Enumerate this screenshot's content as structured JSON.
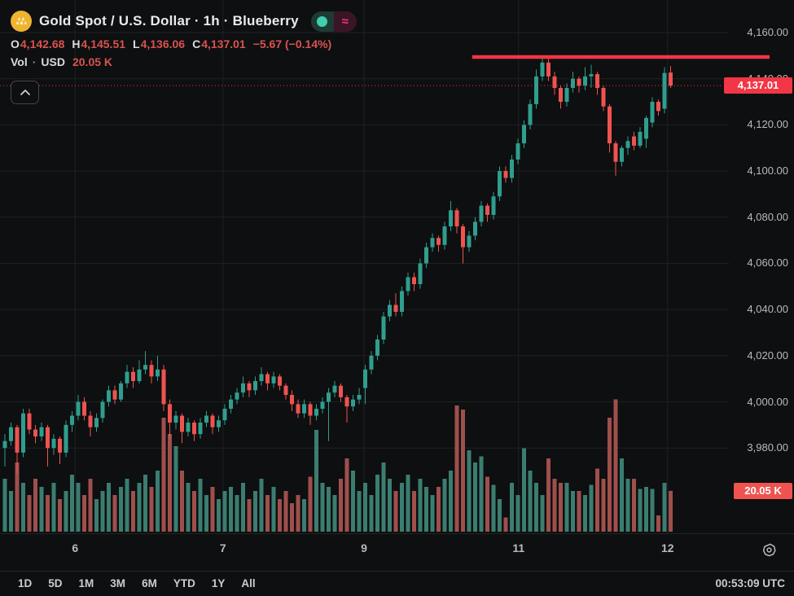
{
  "header": {
    "title": "Gold Spot / U.S. Dollar · 1h · Blueberry",
    "status": {
      "delayed_glyph": "≈"
    },
    "ohlc": {
      "o_label": "O",
      "o": "4,142.68",
      "h_label": "H",
      "h": "4,145.51",
      "l_label": "L",
      "l": "4,136.06",
      "c_label": "C",
      "c": "4,137.01",
      "change": "−5.67 (−0.14%)"
    },
    "volume_row": {
      "label": "Vol",
      "separator": "·",
      "currency": "USD",
      "value": "20.05 K"
    }
  },
  "axes": {
    "price_ticks": [
      {
        "label": "4,160.00",
        "value": 4160
      },
      {
        "label": "4,140.00",
        "value": 4140
      },
      {
        "label": "4,120.00",
        "value": 4120
      },
      {
        "label": "4,100.00",
        "value": 4100
      },
      {
        "label": "4,080.00",
        "value": 4080
      },
      {
        "label": "4,060.00",
        "value": 4060
      },
      {
        "label": "4,040.00",
        "value": 4040
      },
      {
        "label": "4,020.00",
        "value": 4020
      },
      {
        "label": "4,000.00",
        "value": 4000
      },
      {
        "label": "3,980.00",
        "value": 3980
      }
    ],
    "time_ticks": [
      {
        "label": "6",
        "index": 11.5
      },
      {
        "label": "7",
        "index": 35.7
      },
      {
        "label": "9",
        "index": 58.8
      },
      {
        "label": "11",
        "index": 84.1
      },
      {
        "label": "12",
        "index": 108.5
      }
    ],
    "price_badge": "4,137.01",
    "volume_badge": "20.05 K"
  },
  "toolbar": {
    "ranges": [
      "1D",
      "5D",
      "1M",
      "3M",
      "6M",
      "YTD",
      "1Y",
      "All"
    ],
    "clock": "00:53:09 UTC"
  },
  "colors": {
    "up": "#2f9e8e",
    "down": "#ef5350",
    "vol_up": "#3b7d71",
    "vol_down": "#9f4f4c",
    "accent_red": "#f23645",
    "grid": "#1e2124",
    "axis_text": "#b7bac1"
  },
  "chart_data": {
    "type": "candlestick+volume",
    "symbol": "Gold Spot / U.S. Dollar",
    "interval": "1h",
    "feed": "Blueberry",
    "last_price": 4137.01,
    "current_price_line": 4137.01,
    "trendline": {
      "price": 4149.4,
      "start_index": 76.5,
      "extends_into_axis": true
    },
    "volume_units": "K",
    "price_axis_range": [
      3955,
      4174
    ],
    "candles_ohlcv": [
      [
        3980,
        3986,
        3972,
        3983,
        26
      ],
      [
        3983,
        3991,
        3981,
        3989,
        20
      ],
      [
        3989,
        3990,
        3969,
        3978,
        34
      ],
      [
        3978,
        3997,
        3976,
        3995,
        24
      ],
      [
        3995,
        3997,
        3986,
        3988,
        18
      ],
      [
        3988,
        3990,
        3982,
        3985,
        26
      ],
      [
        3985,
        3991,
        3983,
        3989,
        22
      ],
      [
        3989,
        3990,
        3972,
        3980,
        18
      ],
      [
        3980,
        3986,
        3977,
        3984,
        24
      ],
      [
        3984,
        3985,
        3973,
        3978,
        16
      ],
      [
        3978,
        3992,
        3976,
        3990,
        20
      ],
      [
        3990,
        3996,
        3987,
        3994,
        28
      ],
      [
        3994,
        4003,
        3992,
        4000,
        24
      ],
      [
        4000,
        4002,
        3992,
        3994,
        18
      ],
      [
        3994,
        3996,
        3985,
        3989,
        26
      ],
      [
        3989,
        3995,
        3987,
        3993,
        16
      ],
      [
        3993,
        4001,
        3991,
        4000,
        20
      ],
      [
        4000,
        4007,
        3998,
        4005,
        24
      ],
      [
        4005,
        4007,
        3999,
        4001,
        18
      ],
      [
        4001,
        4009,
        4000,
        4008,
        22
      ],
      [
        4008,
        4016,
        4006,
        4013,
        26
      ],
      [
        4013,
        4015,
        4006,
        4009,
        20
      ],
      [
        4009,
        4018,
        4008,
        4014,
        24
      ],
      [
        4014,
        4022,
        4012,
        4016,
        28
      ],
      [
        4016,
        4018,
        4008,
        4011,
        22
      ],
      [
        4011,
        4020,
        4009,
        4014,
        30
      ],
      [
        4014,
        4016,
        3996,
        3999,
        56
      ],
      [
        3999,
        4001,
        3984,
        3991,
        48
      ],
      [
        3991,
        3996,
        3988,
        3994,
        42
      ],
      [
        3994,
        3995,
        3982,
        3987,
        30
      ],
      [
        3987,
        3993,
        3985,
        3991,
        24
      ],
      [
        3991,
        3992,
        3983,
        3986,
        20
      ],
      [
        3986,
        3993,
        3984,
        3991,
        26
      ],
      [
        3991,
        3996,
        3989,
        3994,
        18
      ],
      [
        3994,
        3995,
        3986,
        3989,
        22
      ],
      [
        3989,
        3994,
        3987,
        3992,
        16
      ],
      [
        3992,
        3999,
        3990,
        3997,
        20
      ],
      [
        3997,
        4003,
        3995,
        4001,
        22
      ],
      [
        4001,
        4006,
        3999,
        4004,
        18
      ],
      [
        4004,
        4011,
        4002,
        4008,
        24
      ],
      [
        4008,
        4009,
        4002,
        4005,
        16
      ],
      [
        4005,
        4011,
        4003,
        4009,
        20
      ],
      [
        4009,
        4015,
        4007,
        4012,
        26
      ],
      [
        4012,
        4013,
        4005,
        4008,
        18
      ],
      [
        4008,
        4013,
        4006,
        4011,
        22
      ],
      [
        4011,
        4012,
        4005,
        4007,
        16
      ],
      [
        4007,
        4008,
        4001,
        4003,
        20
      ],
      [
        4003,
        4005,
        3996,
        3999,
        14
      ],
      [
        3999,
        4001,
        3993,
        3995,
        18
      ],
      [
        3995,
        4001,
        3993,
        3999,
        16
      ],
      [
        3999,
        4000,
        3990,
        3994,
        27
      ],
      [
        3994,
        3999,
        3992,
        3997,
        50
      ],
      [
        3997,
        4002,
        3995,
        4000,
        24
      ],
      [
        4000,
        4006,
        3983,
        4004,
        22
      ],
      [
        4004,
        4009,
        4002,
        4007,
        18
      ],
      [
        4007,
        4008,
        4000,
        4002,
        26
      ],
      [
        4002,
        4003,
        3991,
        3998,
        36
      ],
      [
        3998,
        4003,
        3996,
        4001,
        30
      ],
      [
        4001,
        4006,
        3999,
        4003,
        20
      ],
      [
        4006,
        4016,
        3999,
        4014,
        24
      ],
      [
        4014,
        4022,
        4012,
        4020,
        18
      ],
      [
        4020,
        4029,
        4018,
        4027,
        28
      ],
      [
        4027,
        4039,
        4025,
        4037,
        34
      ],
      [
        4037,
        4044,
        4035,
        4042,
        26
      ],
      [
        4042,
        4047,
        4037,
        4039,
        20
      ],
      [
        4039,
        4050,
        4037,
        4048,
        24
      ],
      [
        4048,
        4056,
        4046,
        4054,
        28
      ],
      [
        4054,
        4056,
        4048,
        4051,
        20
      ],
      [
        4051,
        4062,
        4049,
        4060,
        26
      ],
      [
        4060,
        4069,
        4058,
        4067,
        22
      ],
      [
        4067,
        4073,
        4065,
        4071,
        18
      ],
      [
        4071,
        4072,
        4065,
        4068,
        22
      ],
      [
        4068,
        4078,
        4066,
        4076,
        26
      ],
      [
        4076,
        4087,
        4074,
        4083,
        30
      ],
      [
        4083,
        4084,
        4073,
        4076,
        62
      ],
      [
        4076,
        4077,
        4060,
        4067,
        60
      ],
      [
        4067,
        4074,
        4065,
        4072,
        40
      ],
      [
        4072,
        4080,
        4070,
        4078,
        34
      ],
      [
        4078,
        4087,
        4076,
        4085,
        37
      ],
      [
        4085,
        4086,
        4078,
        4081,
        27
      ],
      [
        4081,
        4091,
        4079,
        4089,
        23
      ],
      [
        4089,
        4102,
        4087,
        4100,
        16
      ],
      [
        4100,
        4102,
        4095,
        4097,
        7
      ],
      [
        4097,
        4107,
        4095,
        4105,
        24
      ],
      [
        4105,
        4114,
        4103,
        4112,
        18
      ],
      [
        4112,
        4122,
        4110,
        4120,
        41
      ],
      [
        4120,
        4131,
        4118,
        4129,
        30
      ],
      [
        4129,
        4144,
        4127,
        4141,
        24
      ],
      [
        4141,
        4150,
        4139,
        4147,
        18
      ],
      [
        4147,
        4149,
        4139,
        4141,
        36
      ],
      [
        4141,
        4143,
        4133,
        4136,
        26
      ],
      [
        4136,
        4137,
        4127,
        4130,
        24
      ],
      [
        4130,
        4138,
        4128,
        4136,
        24
      ],
      [
        4136,
        4143,
        4134,
        4140,
        20
      ],
      [
        4140,
        4141,
        4134,
        4137,
        20
      ],
      [
        4137,
        4145,
        4135,
        4141,
        18
      ],
      [
        4141,
        4146,
        4136,
        4142,
        23
      ],
      [
        4142,
        4143,
        4133,
        4136,
        31
      ],
      [
        4136,
        4137,
        4126,
        4128,
        26
      ],
      [
        4128,
        4129,
        4108,
        4112,
        56
      ],
      [
        4112,
        4113,
        4098,
        4104,
        65
      ],
      [
        4104,
        4111,
        4102,
        4110,
        36
      ],
      [
        4110,
        4115,
        4107,
        4113,
        26
      ],
      [
        4115,
        4117,
        4109,
        4111,
        26
      ],
      [
        4111,
        4119,
        4110,
        4117,
        21
      ],
      [
        4114,
        4124,
        4110,
        4123,
        22
      ],
      [
        4121,
        4132,
        4119,
        4130,
        21
      ],
      [
        4130,
        4131,
        4124,
        4126,
        8
      ],
      [
        4127,
        4145,
        4125,
        4142.5,
        24
      ],
      [
        4142.68,
        4145.51,
        4136.06,
        4137.01,
        20.05
      ]
    ]
  }
}
